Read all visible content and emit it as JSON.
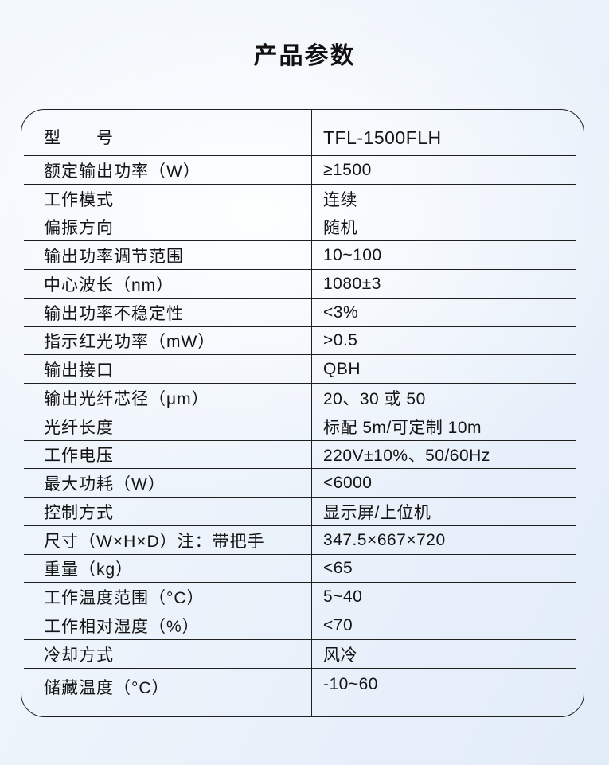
{
  "page": {
    "title": "产品参数"
  },
  "colors": {
    "border": "#1f1f1f",
    "text": "#141414",
    "background_light": "#fbfdfe",
    "background_blue": "#e2ecf8"
  },
  "table": {
    "rows": [
      {
        "label": "型　　号",
        "value": "TFL-1500FLH"
      },
      {
        "label": "额定输出功率（W）",
        "value": "≥1500"
      },
      {
        "label": "工作模式",
        "value": "连续"
      },
      {
        "label": "偏振方向",
        "value": "随机"
      },
      {
        "label": "输出功率调节范围",
        "value": "10~100"
      },
      {
        "label": "中心波长（nm）",
        "value": "1080±3"
      },
      {
        "label": "输出功率不稳定性",
        "value": "<3%"
      },
      {
        "label": "指示红光功率（mW）",
        "value": ">0.5"
      },
      {
        "label": "输出接口",
        "value": "QBH"
      },
      {
        "label": "输出光纤芯径（μm）",
        "value": "20、30 或 50"
      },
      {
        "label": "光纤长度",
        "value": "标配 5m/可定制 10m"
      },
      {
        "label": "工作电压",
        "value": "220V±10%、50/60Hz"
      },
      {
        "label": "最大功耗（W）",
        "value": "<6000"
      },
      {
        "label": "控制方式",
        "value": "显示屏/上位机"
      },
      {
        "label": "尺寸（W×H×D）注：带把手",
        "value": "347.5×667×720"
      },
      {
        "label": "重量（kg）",
        "value": "<65"
      },
      {
        "label": "工作温度范围（°C）",
        "value": "5~40"
      },
      {
        "label": "工作相对湿度（%）",
        "value": "<70"
      },
      {
        "label": "冷却方式",
        "value": "风冷"
      },
      {
        "label": "储藏温度（°C）",
        "value": "-10~60"
      }
    ]
  }
}
